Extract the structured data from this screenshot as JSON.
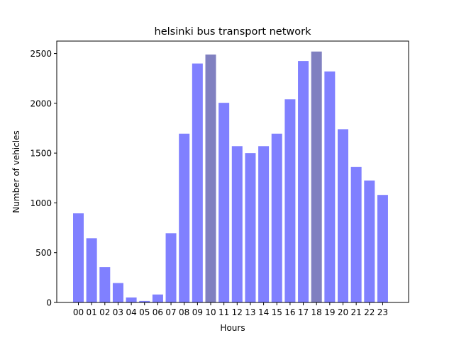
{
  "chart_data": {
    "type": "bar",
    "title": "helsinki bus transport network",
    "xlabel": "Hours",
    "ylabel": "Number of vehicles",
    "categories": [
      "00",
      "01",
      "02",
      "03",
      "04",
      "05",
      "06",
      "07",
      "08",
      "09",
      "10",
      "11",
      "12",
      "13",
      "14",
      "15",
      "16",
      "17",
      "18",
      "19",
      "20",
      "21",
      "22",
      "23"
    ],
    "values": [
      895,
      645,
      355,
      195,
      50,
      15,
      80,
      695,
      1695,
      2400,
      2490,
      2005,
      1570,
      1500,
      1570,
      1695,
      2040,
      2425,
      2520,
      2320,
      1740,
      1360,
      1225,
      1080
    ],
    "highlighted": [
      "10",
      "18"
    ],
    "ylim": [
      0,
      2625
    ],
    "yticks": [
      0,
      500,
      1000,
      1500,
      2000,
      2500
    ],
    "grid": false,
    "colors": {
      "bar": "#8080ff",
      "highlight": "#8080c0",
      "axis": "#000000"
    }
  }
}
